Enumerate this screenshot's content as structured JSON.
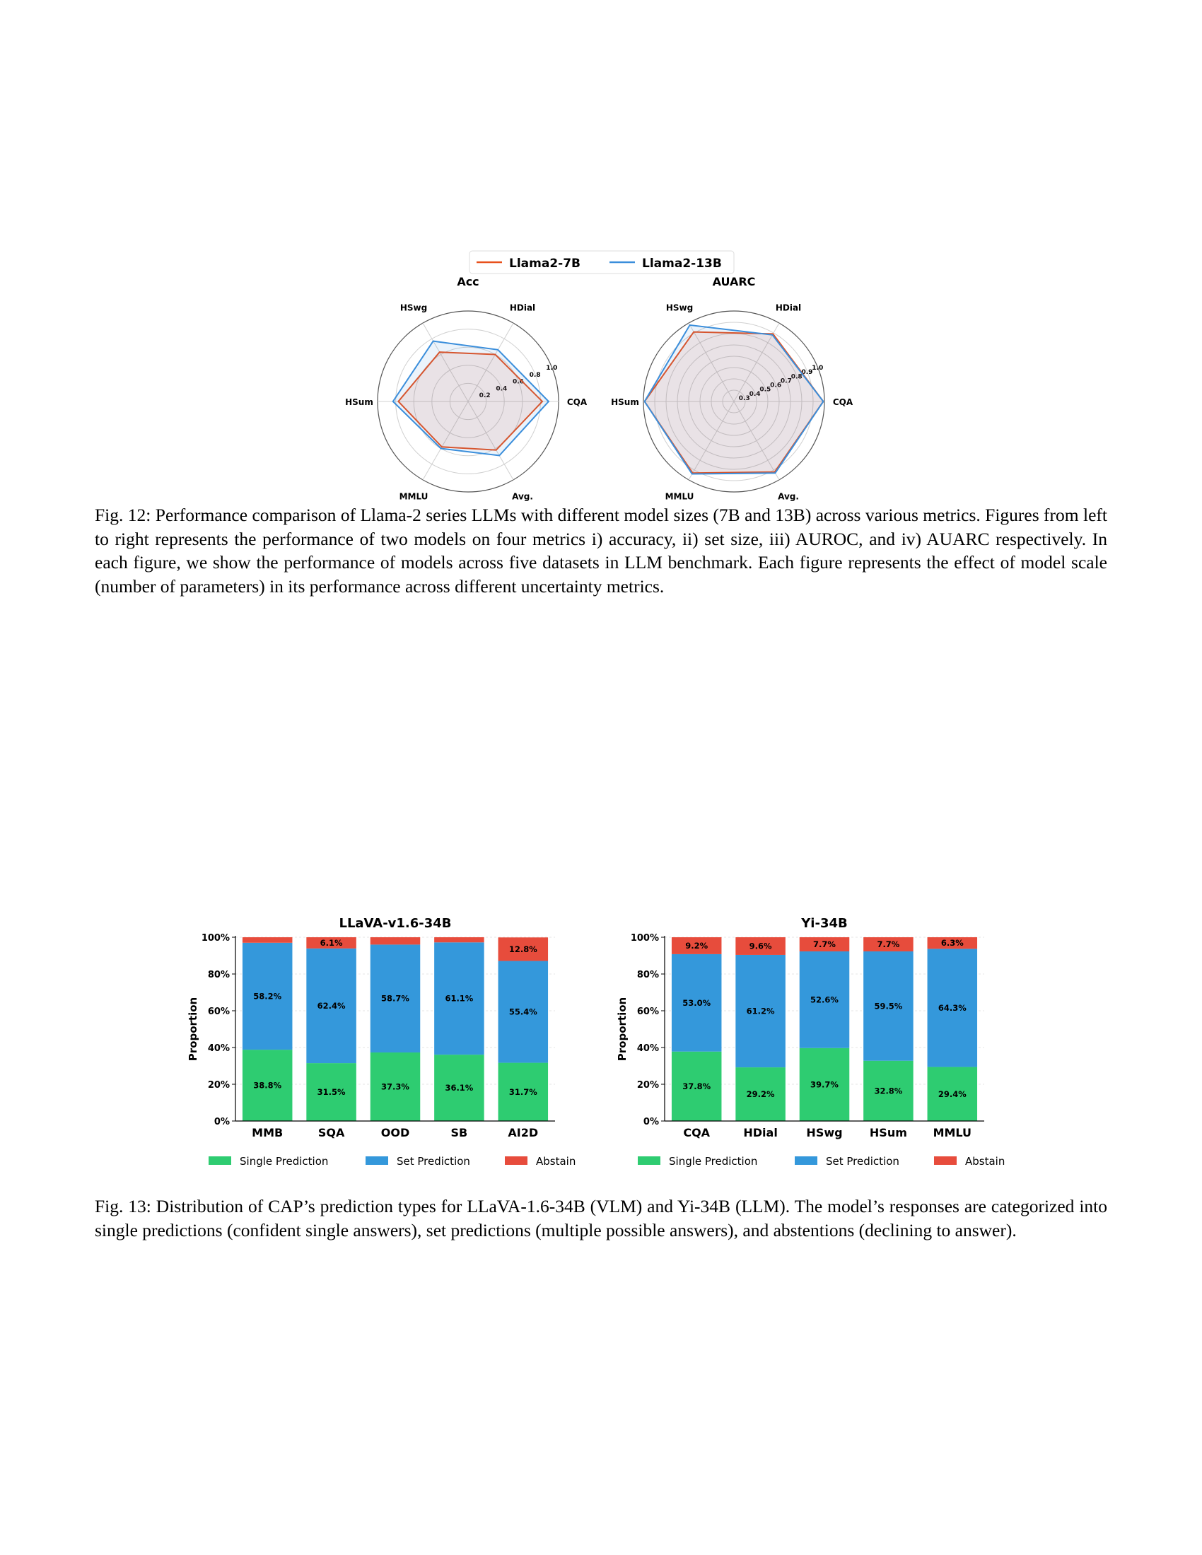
{
  "figure12": {
    "legend": [
      {
        "name": "Llama2-7B",
        "color": "#E8501C"
      },
      {
        "name": "Llama2-13B",
        "color": "#3A8EDB"
      }
    ],
    "charts": [
      {
        "type": "radar",
        "title": "Acc",
        "axes": [
          "CQA",
          "HDial",
          "HSwg",
          "HSum",
          "MMLU",
          "Avg."
        ],
        "r_range": [
          0,
          1.0
        ],
        "r_ticks": [
          "0.2",
          "0.4",
          "0.6",
          "0.8",
          "1.0"
        ],
        "series": [
          {
            "name": "Llama2-7B",
            "values": [
              0.82,
              0.6,
              0.63,
              0.77,
              0.58,
              0.62
            ]
          },
          {
            "name": "Llama2-13B",
            "values": [
              0.89,
              0.66,
              0.77,
              0.83,
              0.6,
              0.69
            ]
          }
        ]
      },
      {
        "type": "radar",
        "title": "AUARC",
        "axes": [
          "CQA",
          "HDial",
          "HSwg",
          "HSum",
          "MMLU",
          "Avg."
        ],
        "r_range": [
          0.2,
          1.0
        ],
        "r_ticks": [
          "0.3",
          "0.4",
          "0.5",
          "0.6",
          "0.7",
          "0.8",
          "0.9",
          "1.0"
        ],
        "series": [
          {
            "name": "Llama2-7B",
            "values": [
              0.99,
              0.89,
              0.91,
              0.99,
              0.93,
              0.92
            ]
          },
          {
            "name": "Llama2-13B",
            "values": [
              0.99,
              0.88,
              0.98,
              0.99,
              0.94,
              0.93
            ]
          }
        ]
      }
    ],
    "caption": "Fig. 12: Performance comparison of Llama-2 series LLMs with different model sizes (7B and 13B) across various metrics. Figures from left to right represents the performance of two models on four metrics i) accuracy, ii) set size, iii) AUROC, and iv) AUARC respectively. In each figure, we show the performance of models across five datasets in LLM benchmark. Each figure represents the effect of model scale (number of parameters) in its performance across different uncertainty metrics."
  },
  "figure13": {
    "colors": {
      "single": "#2ECC71",
      "set": "#3498DB",
      "abstain": "#E74C3C"
    },
    "legend": [
      "Single Prediction",
      "Set Prediction",
      "Abstain"
    ],
    "chart_data": [
      {
        "type": "bar",
        "stacked": true,
        "title": "LLaVA-v1.6-34B",
        "ylabel": "Proportion",
        "ylim": [
          0,
          100
        ],
        "yticks": [
          "0%",
          "20%",
          "40%",
          "60%",
          "80%",
          "100%"
        ],
        "categories": [
          "MMB",
          "SQA",
          "OOD",
          "SB",
          "AI2D"
        ],
        "series": [
          {
            "name": "Single Prediction",
            "values": [
              38.8,
              31.5,
              37.3,
              36.1,
              31.7
            ],
            "labels": [
              "38.8%",
              "31.5%",
              "37.3%",
              "36.1%",
              "31.7%"
            ]
          },
          {
            "name": "Set Prediction",
            "values": [
              58.2,
              62.4,
              58.7,
              61.1,
              55.4
            ],
            "labels": [
              "58.2%",
              "62.4%",
              "58.7%",
              "61.1%",
              "55.4%"
            ]
          },
          {
            "name": "Abstain",
            "values": [
              3.0,
              6.1,
              4.0,
              2.8,
              12.8
            ],
            "labels": [
              "",
              "6.1%",
              "",
              "",
              "12.8%"
            ]
          }
        ]
      },
      {
        "type": "bar",
        "stacked": true,
        "title": "Yi-34B",
        "ylabel": "Proportion",
        "ylim": [
          0,
          100
        ],
        "yticks": [
          "0%",
          "20%",
          "40%",
          "60%",
          "80%",
          "100%"
        ],
        "categories": [
          "CQA",
          "HDial",
          "HSwg",
          "HSum",
          "MMLU"
        ],
        "series": [
          {
            "name": "Single Prediction",
            "values": [
              37.8,
              29.2,
              39.7,
              32.8,
              29.4
            ],
            "labels": [
              "37.8%",
              "29.2%",
              "39.7%",
              "32.8%",
              "29.4%"
            ]
          },
          {
            "name": "Set Prediction",
            "values": [
              53.0,
              61.2,
              52.6,
              59.5,
              64.3
            ],
            "labels": [
              "53.0%",
              "61.2%",
              "52.6%",
              "59.5%",
              "64.3%"
            ]
          },
          {
            "name": "Abstain",
            "values": [
              9.2,
              9.6,
              7.7,
              7.7,
              6.3
            ],
            "labels": [
              "9.2%",
              "9.6%",
              "7.7%",
              "7.7%",
              "6.3%"
            ]
          }
        ]
      }
    ],
    "caption": "Fig. 13: Distribution of CAP’s prediction types for LLaVA-1.6-34B (VLM) and Yi-34B (LLM). The model’s responses are categorized into single predictions (confident single answers), set predictions (multiple possible answers), and abstentions (declining to answer)."
  }
}
